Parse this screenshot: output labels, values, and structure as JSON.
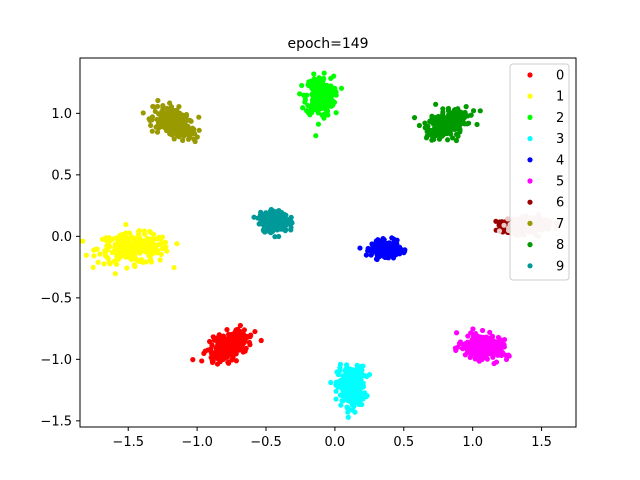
{
  "chart_data": {
    "type": "scatter",
    "title": "epoch=149",
    "xlabel": "",
    "ylabel": "",
    "xlim": [
      -1.85,
      1.75
    ],
    "ylim": [
      -1.55,
      1.45
    ],
    "xticks": [
      -1.5,
      -1.0,
      -0.5,
      0.0,
      0.5,
      1.0,
      1.5
    ],
    "xtick_labels": [
      "−1.5",
      "−1.0",
      "−0.5",
      "0.0",
      "0.5",
      "1.0",
      "1.5"
    ],
    "yticks": [
      -1.5,
      -1.0,
      -0.5,
      0.0,
      0.5,
      1.0
    ],
    "ytick_labels": [
      "−1.5",
      "−1.0",
      "−0.5",
      "0.0",
      "0.5",
      "1.0"
    ],
    "grid": false,
    "legend_position": "top-right",
    "series": [
      {
        "name": "0",
        "color": "#ff0000",
        "center": [
          -0.77,
          -0.89
        ],
        "spread": [
          0.08,
          0.05
        ],
        "tilt": 35
      },
      {
        "name": "1",
        "color": "#ffff00",
        "center": [
          -1.46,
          -0.1
        ],
        "spread": [
          0.13,
          0.06
        ],
        "tilt": 0
      },
      {
        "name": "2",
        "color": "#00ff00",
        "center": [
          -0.11,
          1.14
        ],
        "spread": [
          0.05,
          0.08
        ],
        "tilt": 0
      },
      {
        "name": "3",
        "color": "#00ffff",
        "center": [
          0.12,
          -1.22
        ],
        "spread": [
          0.05,
          0.08
        ],
        "tilt": 0
      },
      {
        "name": "4",
        "color": "#0000ff",
        "center": [
          0.37,
          -0.1
        ],
        "spread": [
          0.05,
          0.03
        ],
        "tilt": 0
      },
      {
        "name": "5",
        "color": "#ff00ff",
        "center": [
          1.07,
          -0.9
        ],
        "spread": [
          0.07,
          0.05
        ],
        "tilt": -15
      },
      {
        "name": "6",
        "color": "#990000",
        "center": [
          1.27,
          0.08
        ],
        "spread": [
          0.03,
          0.02
        ],
        "tilt": 0
      },
      {
        "name": "7",
        "color": "#999900",
        "center": [
          -1.17,
          0.93
        ],
        "spread": [
          0.08,
          0.05
        ],
        "tilt": -35
      },
      {
        "name": "8",
        "color": "#009900",
        "center": [
          0.81,
          0.91
        ],
        "spread": [
          0.08,
          0.05
        ],
        "tilt": 35
      },
      {
        "name": "9",
        "color": "#009999",
        "center": [
          -0.44,
          0.12
        ],
        "spread": [
          0.05,
          0.04
        ],
        "tilt": 0
      },
      {
        "name": "",
        "color": "#eccaca",
        "center": [
          1.42,
          0.09
        ],
        "spread": [
          0.08,
          0.03
        ],
        "tilt": 5
      }
    ]
  }
}
